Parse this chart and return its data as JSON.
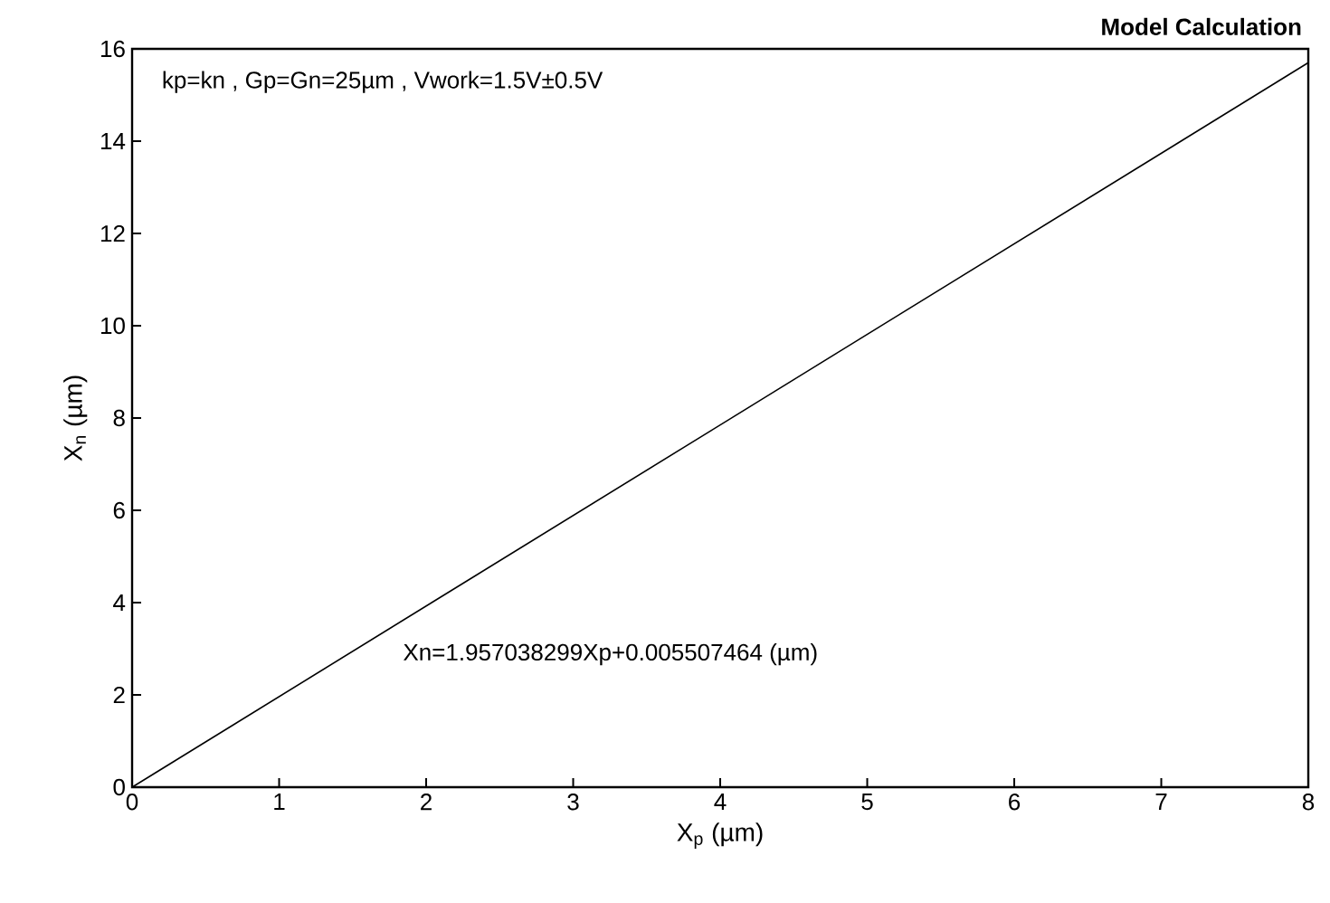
{
  "chart_data": {
    "type": "line",
    "title": "**Model Calculation**",
    "xlabel": "X$_{p}$ (µm)",
    "ylabel": "X$_{n}$ (µm)",
    "annotations": [
      "kp=kn , Gp=Gn=25µm , Vwork=1.5V±0.5V",
      "Xn=1.957038299Xp+0.005507464 (µm)"
    ],
    "x": [
      0,
      8
    ],
    "series": [
      {
        "color": "#000000",
        "values": [
          0,
          15.7
        ]
      }
    ],
    "xlim": [
      0,
      8
    ],
    "ylim": [
      0,
      16
    ],
    "xticks": [
      0,
      1,
      2,
      3,
      4,
      5,
      6,
      7,
      8
    ],
    "yticks": [
      0,
      2,
      4,
      6,
      8,
      10,
      12,
      14,
      16
    ]
  }
}
